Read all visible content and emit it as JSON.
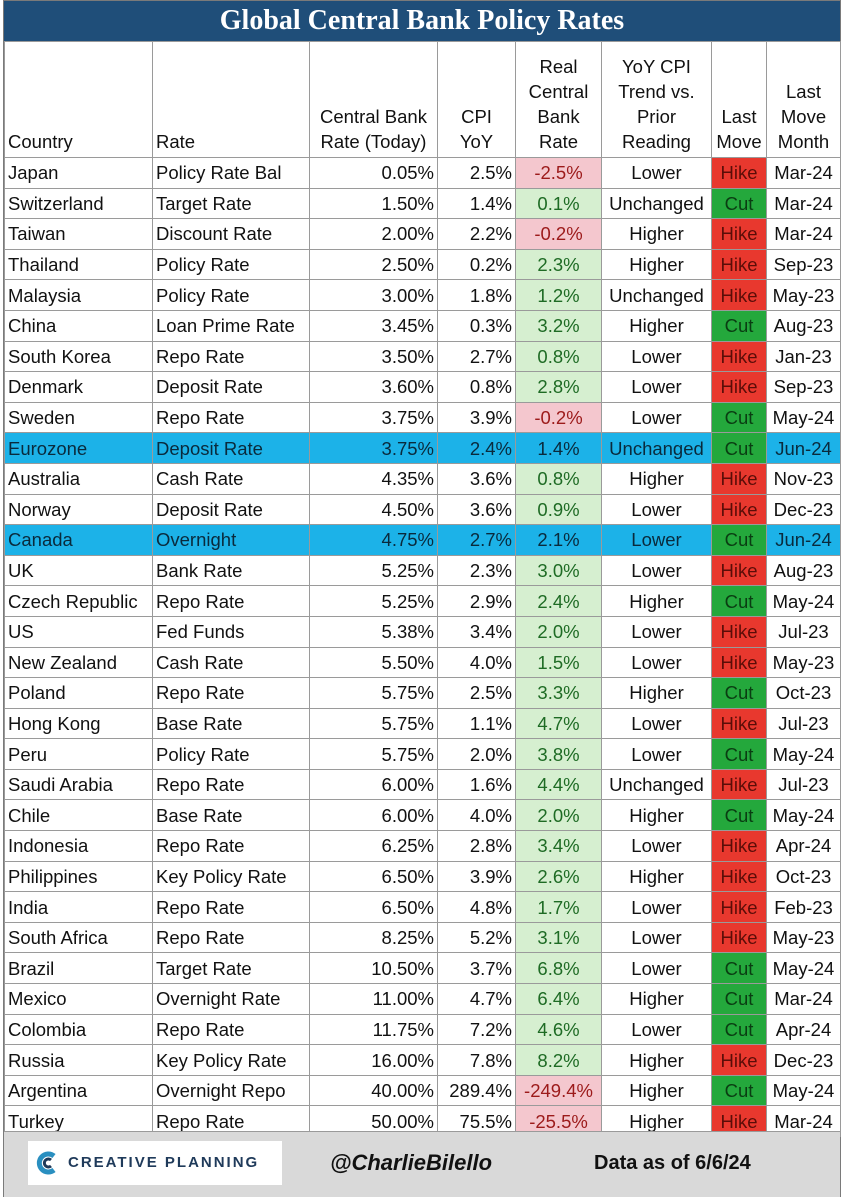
{
  "title": "Global Central Bank Policy Rates",
  "columns": {
    "country": "Country",
    "rate": "Rate",
    "cb_rate": [
      "Central Bank",
      "Rate (Today)"
    ],
    "cpi": [
      "CPI",
      "YoY"
    ],
    "real": [
      "Real",
      "Central",
      "Bank",
      "Rate"
    ],
    "trend": [
      "YoY CPI",
      "Trend vs.",
      "Prior",
      "Reading"
    ],
    "last_move": [
      "Last",
      "Move"
    ],
    "month": [
      "Last",
      "Move",
      "Month"
    ]
  },
  "rows": [
    {
      "country": "Japan",
      "rate": "Policy Rate Bal",
      "cb_rate": "0.05%",
      "cpi": "2.5%",
      "real": "-2.5%",
      "trend": "Lower",
      "move": "Hike",
      "month": "Mar-24"
    },
    {
      "country": "Switzerland",
      "rate": "Target Rate",
      "cb_rate": "1.50%",
      "cpi": "1.4%",
      "real": "0.1%",
      "trend": "Unchanged",
      "move": "Cut",
      "month": "Mar-24"
    },
    {
      "country": "Taiwan",
      "rate": "Discount Rate",
      "cb_rate": "2.00%",
      "cpi": "2.2%",
      "real": "-0.2%",
      "trend": "Higher",
      "move": "Hike",
      "month": "Mar-24"
    },
    {
      "country": "Thailand",
      "rate": "Policy Rate",
      "cb_rate": "2.50%",
      "cpi": "0.2%",
      "real": "2.3%",
      "trend": "Higher",
      "move": "Hike",
      "month": "Sep-23"
    },
    {
      "country": "Malaysia",
      "rate": "Policy Rate",
      "cb_rate": "3.00%",
      "cpi": "1.8%",
      "real": "1.2%",
      "trend": "Unchanged",
      "move": "Hike",
      "month": "May-23"
    },
    {
      "country": "China",
      "rate": "Loan Prime Rate",
      "cb_rate": "3.45%",
      "cpi": "0.3%",
      "real": "3.2%",
      "trend": "Higher",
      "move": "Cut",
      "month": "Aug-23"
    },
    {
      "country": "South Korea",
      "rate": "Repo Rate",
      "cb_rate": "3.50%",
      "cpi": "2.7%",
      "real": "0.8%",
      "trend": "Lower",
      "move": "Hike",
      "month": "Jan-23"
    },
    {
      "country": "Denmark",
      "rate": "Deposit Rate",
      "cb_rate": "3.60%",
      "cpi": "0.8%",
      "real": "2.8%",
      "trend": "Lower",
      "move": "Hike",
      "month": "Sep-23"
    },
    {
      "country": "Sweden",
      "rate": "Repo Rate",
      "cb_rate": "3.75%",
      "cpi": "3.9%",
      "real": "-0.2%",
      "trend": "Lower",
      "move": "Cut",
      "month": "May-24"
    },
    {
      "country": "Eurozone",
      "rate": "Deposit Rate",
      "cb_rate": "3.75%",
      "cpi": "2.4%",
      "real": "1.4%",
      "trend": "Unchanged",
      "move": "Cut",
      "month": "Jun-24",
      "highlight": true
    },
    {
      "country": "Australia",
      "rate": "Cash Rate",
      "cb_rate": "4.35%",
      "cpi": "3.6%",
      "real": "0.8%",
      "trend": "Higher",
      "move": "Hike",
      "month": "Nov-23"
    },
    {
      "country": "Norway",
      "rate": "Deposit Rate",
      "cb_rate": "4.50%",
      "cpi": "3.6%",
      "real": "0.9%",
      "trend": "Lower",
      "move": "Hike",
      "month": "Dec-23"
    },
    {
      "country": "Canada",
      "rate": "Overnight",
      "cb_rate": "4.75%",
      "cpi": "2.7%",
      "real": "2.1%",
      "trend": "Lower",
      "move": "Cut",
      "month": "Jun-24",
      "highlight": true
    },
    {
      "country": "UK",
      "rate": "Bank Rate",
      "cb_rate": "5.25%",
      "cpi": "2.3%",
      "real": "3.0%",
      "trend": "Lower",
      "move": "Hike",
      "month": "Aug-23"
    },
    {
      "country": "Czech Republic",
      "rate": "Repo Rate",
      "cb_rate": "5.25%",
      "cpi": "2.9%",
      "real": "2.4%",
      "trend": "Higher",
      "move": "Cut",
      "month": "May-24"
    },
    {
      "country": "US",
      "rate": "Fed Funds",
      "cb_rate": "5.38%",
      "cpi": "3.4%",
      "real": "2.0%",
      "trend": "Lower",
      "move": "Hike",
      "month": "Jul-23"
    },
    {
      "country": "New Zealand",
      "rate": "Cash Rate",
      "cb_rate": "5.50%",
      "cpi": "4.0%",
      "real": "1.5%",
      "trend": "Lower",
      "move": "Hike",
      "month": "May-23"
    },
    {
      "country": "Poland",
      "rate": "Repo Rate",
      "cb_rate": "5.75%",
      "cpi": "2.5%",
      "real": "3.3%",
      "trend": "Higher",
      "move": "Cut",
      "month": "Oct-23"
    },
    {
      "country": "Hong Kong",
      "rate": "Base Rate",
      "cb_rate": "5.75%",
      "cpi": "1.1%",
      "real": "4.7%",
      "trend": "Lower",
      "move": "Hike",
      "month": "Jul-23"
    },
    {
      "country": "Peru",
      "rate": "Policy Rate",
      "cb_rate": "5.75%",
      "cpi": "2.0%",
      "real": "3.8%",
      "trend": "Lower",
      "move": "Cut",
      "month": "May-24"
    },
    {
      "country": "Saudi Arabia",
      "rate": "Repo Rate",
      "cb_rate": "6.00%",
      "cpi": "1.6%",
      "real": "4.4%",
      "trend": "Unchanged",
      "move": "Hike",
      "month": "Jul-23"
    },
    {
      "country": "Chile",
      "rate": "Base Rate",
      "cb_rate": "6.00%",
      "cpi": "4.0%",
      "real": "2.0%",
      "trend": "Higher",
      "move": "Cut",
      "month": "May-24"
    },
    {
      "country": "Indonesia",
      "rate": "Repo Rate",
      "cb_rate": "6.25%",
      "cpi": "2.8%",
      "real": "3.4%",
      "trend": "Lower",
      "move": "Hike",
      "month": "Apr-24"
    },
    {
      "country": "Philippines",
      "rate": "Key Policy Rate",
      "cb_rate": "6.50%",
      "cpi": "3.9%",
      "real": "2.6%",
      "trend": "Higher",
      "move": "Hike",
      "month": "Oct-23"
    },
    {
      "country": "India",
      "rate": "Repo Rate",
      "cb_rate": "6.50%",
      "cpi": "4.8%",
      "real": "1.7%",
      "trend": "Lower",
      "move": "Hike",
      "month": "Feb-23"
    },
    {
      "country": "South Africa",
      "rate": "Repo Rate",
      "cb_rate": "8.25%",
      "cpi": "5.2%",
      "real": "3.1%",
      "trend": "Lower",
      "move": "Hike",
      "month": "May-23"
    },
    {
      "country": "Brazil",
      "rate": "Target Rate",
      "cb_rate": "10.50%",
      "cpi": "3.7%",
      "real": "6.8%",
      "trend": "Lower",
      "move": "Cut",
      "month": "May-24"
    },
    {
      "country": "Mexico",
      "rate": "Overnight Rate",
      "cb_rate": "11.00%",
      "cpi": "4.7%",
      "real": "6.4%",
      "trend": "Higher",
      "move": "Cut",
      "month": "Mar-24"
    },
    {
      "country": "Colombia",
      "rate": "Repo Rate",
      "cb_rate": "11.75%",
      "cpi": "7.2%",
      "real": "4.6%",
      "trend": "Lower",
      "move": "Cut",
      "month": "Apr-24"
    },
    {
      "country": "Russia",
      "rate": "Key Policy Rate",
      "cb_rate": "16.00%",
      "cpi": "7.8%",
      "real": "8.2%",
      "trend": "Higher",
      "move": "Hike",
      "month": "Dec-23"
    },
    {
      "country": "Argentina",
      "rate": "Overnight Repo",
      "cb_rate": "40.00%",
      "cpi": "289.4%",
      "real": "-249.4%",
      "trend": "Higher",
      "move": "Cut",
      "month": "May-24"
    },
    {
      "country": "Turkey",
      "rate": "Repo Rate",
      "cb_rate": "50.00%",
      "cpi": "75.5%",
      "real": "-25.5%",
      "trend": "Higher",
      "move": "Hike",
      "month": "Mar-24"
    }
  ],
  "footer": {
    "logo_text": "CREATIVE PLANNING",
    "handle": "@CharlieBilello",
    "as_of": "Data as of 6/6/24"
  },
  "colors": {
    "title_bg": "#1f4e79",
    "highlight_row": "#1cb2e8",
    "hike": "#e8382e",
    "cut": "#24a83c",
    "negative_real": "#f4c7ce",
    "positive_real": "#d6efd0"
  },
  "icons": {
    "logo": "creative-planning-c-logo"
  }
}
